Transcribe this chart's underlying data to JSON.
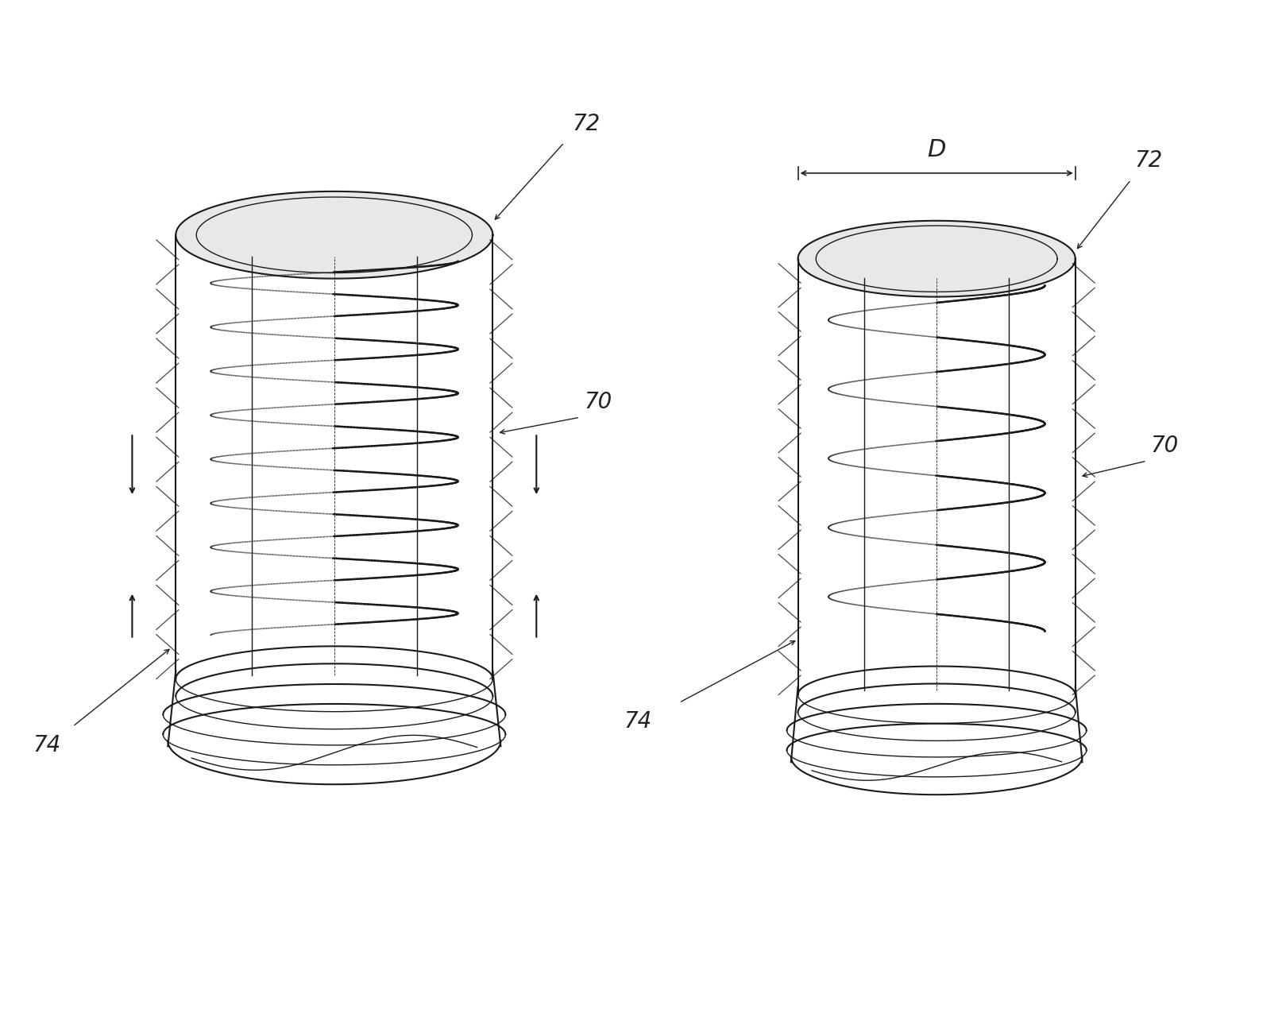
{
  "bg_color": "#ffffff",
  "line_color": "#1a1a1a",
  "label_color": "#222222",
  "fig_width": 16.19,
  "fig_height": 12.75,
  "dpi": 100,
  "labels": {
    "72_left": "72",
    "70_left": "70",
    "74_left": "74",
    "72_right": "72",
    "70_right": "70",
    "74_right": "74",
    "D": "D"
  },
  "font_size_labels": 20,
  "font_style": "italic"
}
